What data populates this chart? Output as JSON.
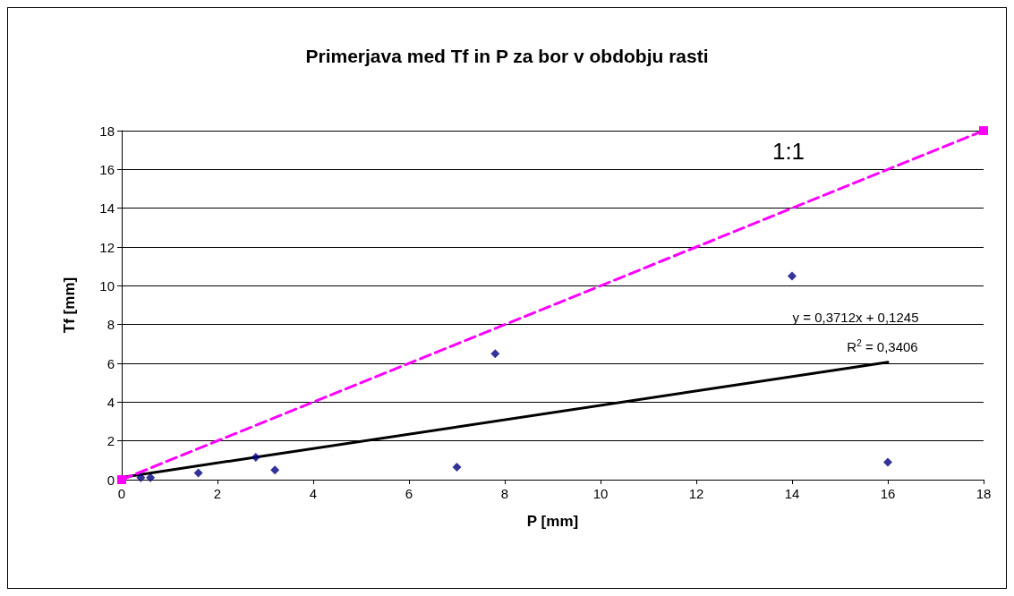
{
  "chart_data": {
    "type": "scatter",
    "title": "Primerjava med Tf in P za bor v obdobju rasti",
    "xlabel": "P [mm]",
    "ylabel": "Tf [mm]",
    "series": [
      {
        "color": "#000080",
        "marker": "diamond",
        "x": [
          0.4,
          0.6,
          1.6,
          2.8,
          3.2,
          7,
          7.8,
          14,
          16
        ],
        "values": [
          0.1,
          0.1,
          0.35,
          1.15,
          0.5,
          0.65,
          6.5,
          10.5,
          0.9
        ]
      },
      {
        "type": "line",
        "color": "#000000",
        "marker": "none",
        "line_style": "solid",
        "x": [
          0,
          16
        ],
        "values": [
          0.12,
          6.06
        ]
      },
      {
        "type": "line",
        "color": "#ff00ff",
        "marker": "square",
        "line_style": "dashed",
        "x": [
          0,
          18
        ],
        "values": [
          0,
          18
        ]
      }
    ],
    "xlim": [
      0,
      18
    ],
    "xticks": [
      0,
      2,
      4,
      6,
      8,
      10,
      12,
      14,
      16,
      18
    ],
    "ylim": [
      0,
      18
    ],
    "yticks": [
      0,
      2,
      4,
      6,
      8,
      10,
      12,
      14,
      16,
      18
    ],
    "grid": "y",
    "annotations": [
      "1:1",
      "y = 0,3712x + 0,1245",
      "R$^{2}$ = 0,3406"
    ]
  }
}
